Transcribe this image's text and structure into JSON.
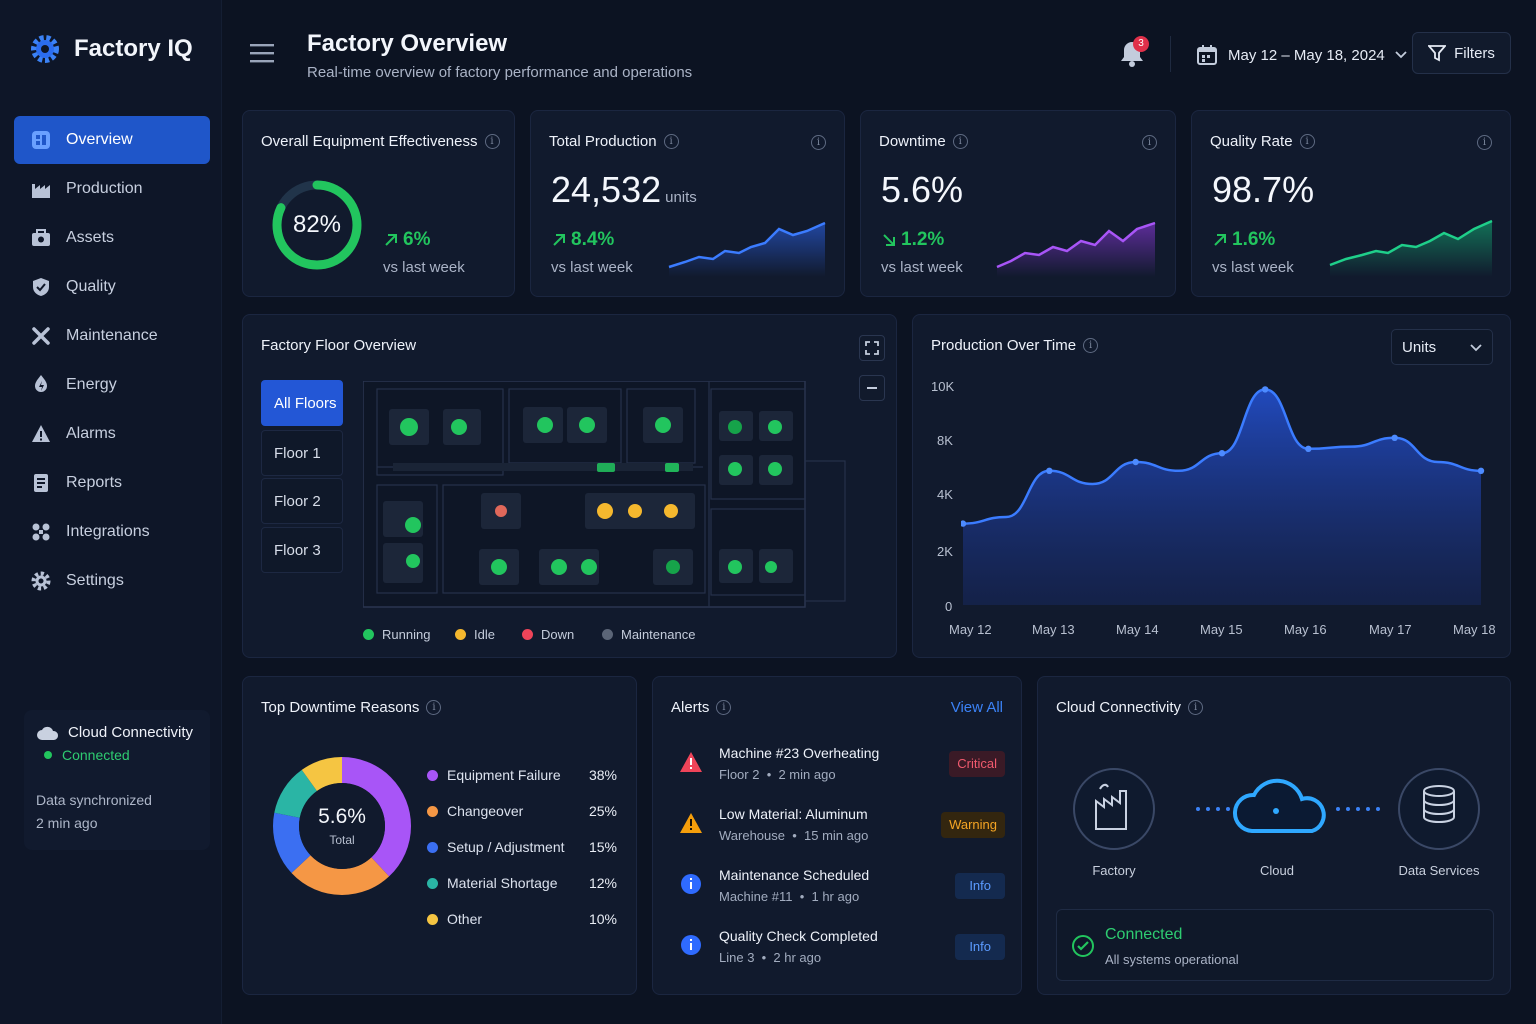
{
  "app": {
    "name": "Factory IQ"
  },
  "nav": {
    "items": [
      {
        "label": "Overview",
        "icon": "overview-icon",
        "active": true
      },
      {
        "label": "Production",
        "icon": "factory-icon"
      },
      {
        "label": "Assets",
        "icon": "assets-icon"
      },
      {
        "label": "Quality",
        "icon": "shield-icon"
      },
      {
        "label": "Maintenance",
        "icon": "wrench-icon"
      },
      {
        "label": "Energy",
        "icon": "energy-icon"
      },
      {
        "label": "Alarms",
        "icon": "alarm-icon"
      },
      {
        "label": "Reports",
        "icon": "reports-icon"
      },
      {
        "label": "Integrations",
        "icon": "integrations-icon"
      },
      {
        "label": "Settings",
        "icon": "gear-icon"
      }
    ]
  },
  "sidebar_connectivity": {
    "title": "Cloud Connectivity",
    "status": "Connected",
    "sync_line1": "Data synchronized",
    "sync_line2": "2 min ago"
  },
  "header": {
    "title": "Factory Overview",
    "subtitle": "Real-time overview of factory performance and operations",
    "notification_count": "3",
    "date_range": "May 12 – May 18, 2024",
    "filters_label": "Filters"
  },
  "kpis": {
    "oee": {
      "title": "Overall Equipment Effectiveness",
      "value": "82%",
      "fraction": 0.82,
      "delta": "6%",
      "vs": "vs last week"
    },
    "production": {
      "title": "Total Production",
      "value": "24,532",
      "unit": "units",
      "delta": "8.4%",
      "vs": "vs last week"
    },
    "downtime": {
      "title": "Downtime",
      "value": "5.6%",
      "delta": "1.2%",
      "vs": "vs last week"
    },
    "quality": {
      "title": "Quality Rate",
      "value": "98.7%",
      "delta": "1.6%",
      "vs": "vs last week"
    }
  },
  "floor": {
    "title": "Factory Floor Overview",
    "tabs": [
      "All Floors",
      "Floor 1",
      "Floor 2",
      "Floor 3"
    ],
    "legend": [
      {
        "label": "Running",
        "color": "#22c55e"
      },
      {
        "label": "Idle",
        "color": "#f5b82e"
      },
      {
        "label": "Down",
        "color": "#ef4459"
      },
      {
        "label": "Maintenance",
        "color": "#5b6577"
      }
    ]
  },
  "production_chart": {
    "title": "Production Over Time",
    "unit_select": "Units",
    "y_ticks": [
      "10K",
      "8K",
      "4K",
      "2K",
      "0"
    ],
    "x_ticks": [
      "May 12",
      "May 13",
      "May 14",
      "May 15",
      "May 16",
      "May 17",
      "May 18"
    ]
  },
  "chart_data": {
    "type": "area",
    "x": [
      "May 12",
      "May 12.5",
      "May 13",
      "May 13.5",
      "May 14",
      "May 14.5",
      "May 15",
      "May 15.5",
      "May 16",
      "May 16.5",
      "May 17",
      "May 17.5",
      "May 18"
    ],
    "values": [
      3700,
      4000,
      6100,
      5500,
      6500,
      6100,
      6900,
      9800,
      7100,
      7200,
      7600,
      6500,
      6100
    ],
    "ylim": [
      0,
      10000
    ]
  },
  "downtime_reasons": {
    "title": "Top Downtime Reasons",
    "center_value": "5.6%",
    "center_label": "Total",
    "items": [
      {
        "label": "Equipment Failure",
        "pct": "38%",
        "value": 38,
        "color": "#a855f7"
      },
      {
        "label": "Changeover",
        "pct": "25%",
        "value": 25,
        "color": "#f59745"
      },
      {
        "label": "Setup / Adjustment",
        "pct": "15%",
        "value": 15,
        "color": "#3b6ff2"
      },
      {
        "label": "Material Shortage",
        "pct": "12%",
        "value": 12,
        "color": "#2ab5a5"
      },
      {
        "label": "Other",
        "pct": "10%",
        "value": 10,
        "color": "#f5c542"
      }
    ]
  },
  "alerts": {
    "title": "Alerts",
    "view_all": "View All",
    "items": [
      {
        "title": "Machine #23 Overheating",
        "location": "Floor 2",
        "time": "2 min ago",
        "severity": "Critical",
        "icon": "warning-icon"
      },
      {
        "title": "Low Material: Aluminum",
        "location": "Warehouse",
        "time": "15 min ago",
        "severity": "Warning",
        "icon": "warning-icon"
      },
      {
        "title": "Maintenance Scheduled",
        "location": "Machine #11",
        "time": "1 hr ago",
        "severity": "Info",
        "icon": "info-icon"
      },
      {
        "title": "Quality Check Completed",
        "location": "Line 3",
        "time": "2 hr ago",
        "severity": "Info",
        "icon": "info-icon"
      }
    ]
  },
  "cloud": {
    "title": "Cloud Connectivity",
    "nodes": [
      "Factory",
      "Cloud",
      "Data Services"
    ],
    "status": "Connected",
    "status_detail": "All systems operational"
  },
  "colors": {
    "accent": "#2357d6",
    "success": "#22c55e",
    "critical": "#ef4459",
    "warning": "#f59e0b",
    "info": "#3b82f6"
  }
}
